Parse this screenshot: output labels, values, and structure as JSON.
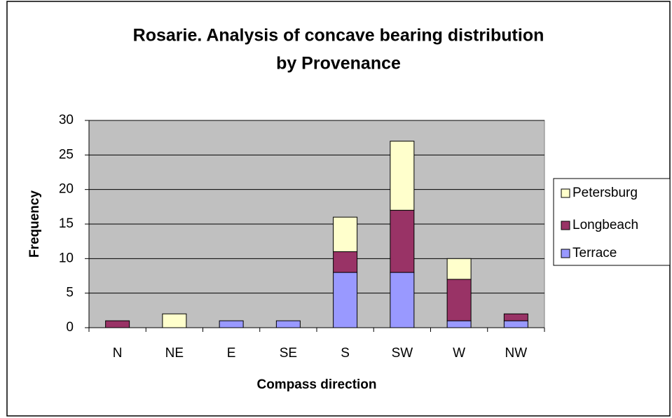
{
  "chart_data": {
    "type": "stacked_bar",
    "title": [
      "Rosarie. Analysis of concave bearing distribution",
      "by Provenance"
    ],
    "x_label": "Compass direction",
    "y_label": "Frequency",
    "categories": [
      "N",
      "NE",
      "E",
      "SE",
      "S",
      "SW",
      "W",
      "NW"
    ],
    "series": [
      {
        "name": "Terrace",
        "color": "#9999ff",
        "values": [
          0,
          0,
          1,
          1,
          8,
          8,
          1,
          1
        ]
      },
      {
        "name": "Longbeach",
        "color": "#993366",
        "values": [
          1,
          0,
          0,
          0,
          3,
          9,
          6,
          1
        ]
      },
      {
        "name": "Petersburg",
        "color": "#ffffcc",
        "values": [
          0,
          2,
          0,
          0,
          5,
          10,
          3,
          0
        ]
      }
    ],
    "ylim": [
      0,
      30
    ],
    "yticks": [
      0,
      5,
      10,
      15,
      20,
      25,
      30
    ],
    "grid": true,
    "legend": "right"
  }
}
